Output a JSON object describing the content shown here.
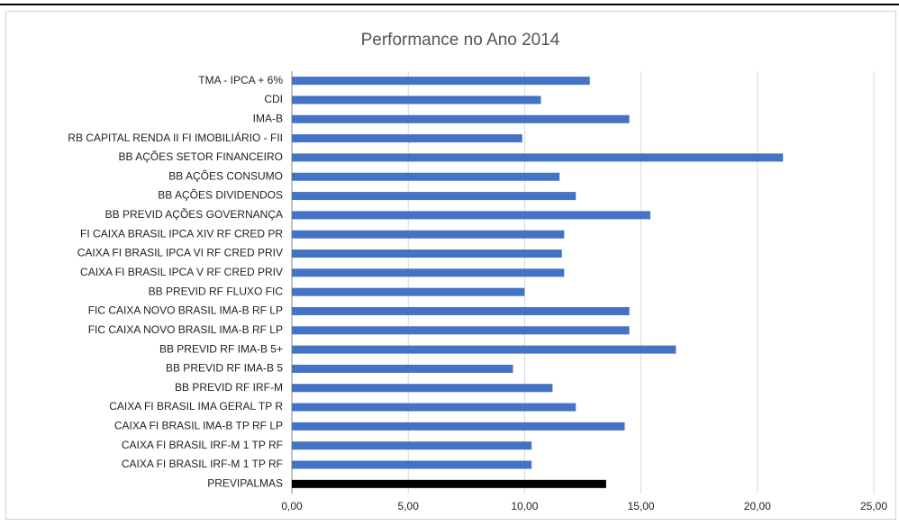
{
  "chart_data": {
    "type": "bar",
    "orientation": "horizontal",
    "title": "Performance no Ano 2014",
    "categories": [
      "TMA - IPCA + 6%",
      "CDI",
      "IMA-B",
      "RB CAPITAL RENDA II FI IMOBILIÁRIO - FII",
      "BB AÇÕES SETOR FINANCEIRO",
      "BB AÇÕES CONSUMO",
      "BB AÇÕES DIVIDENDOS",
      "BB PREVID AÇÕES GOVERNANÇA",
      "FI CAIXA BRASIL IPCA XIV RF CRED PR",
      "CAIXA FI BRASIL IPCA VI RF CRED PRIV",
      "CAIXA FI BRASIL IPCA V RF CRED PRIV",
      "BB PREVID RF FLUXO FIC",
      "FIC CAIXA NOVO BRASIL IMA-B RF LP",
      "FIC CAIXA NOVO BRASIL IMA-B RF LP",
      "BB PREVID RF IMA-B 5+",
      "BB PREVID RF IMA-B 5",
      "BB PREVID RF IRF-M",
      "CAIXA FI BRASIL IMA GERAL TP R",
      "CAIXA FI BRASIL IMA-B TP RF LP",
      "CAIXA FI BRASIL IRF-M 1 TP RF",
      "CAIXA FI BRASIL IRF-M 1 TP RF",
      "PREVIPALMAS"
    ],
    "values": [
      12.8,
      10.7,
      14.5,
      9.9,
      21.1,
      11.5,
      12.2,
      15.4,
      11.7,
      11.6,
      11.7,
      10.0,
      14.5,
      14.5,
      16.5,
      9.5,
      11.2,
      12.2,
      14.3,
      10.3,
      10.3,
      13.5
    ],
    "colors": [
      "#4472c4",
      "#4472c4",
      "#4472c4",
      "#4472c4",
      "#4472c4",
      "#4472c4",
      "#4472c4",
      "#4472c4",
      "#4472c4",
      "#4472c4",
      "#4472c4",
      "#4472c4",
      "#4472c4",
      "#4472c4",
      "#4472c4",
      "#4472c4",
      "#4472c4",
      "#4472c4",
      "#4472c4",
      "#4472c4",
      "#4472c4",
      "#000000"
    ],
    "xlim": [
      0,
      25
    ],
    "xticks": [
      {
        "value": 0,
        "label": "0,00"
      },
      {
        "value": 5,
        "label": "5,00"
      },
      {
        "value": 10,
        "label": "10,00"
      },
      {
        "value": 15,
        "label": "15,00"
      },
      {
        "value": 20,
        "label": "20,00"
      },
      {
        "value": 25,
        "label": "25,00"
      }
    ],
    "grid": true
  }
}
